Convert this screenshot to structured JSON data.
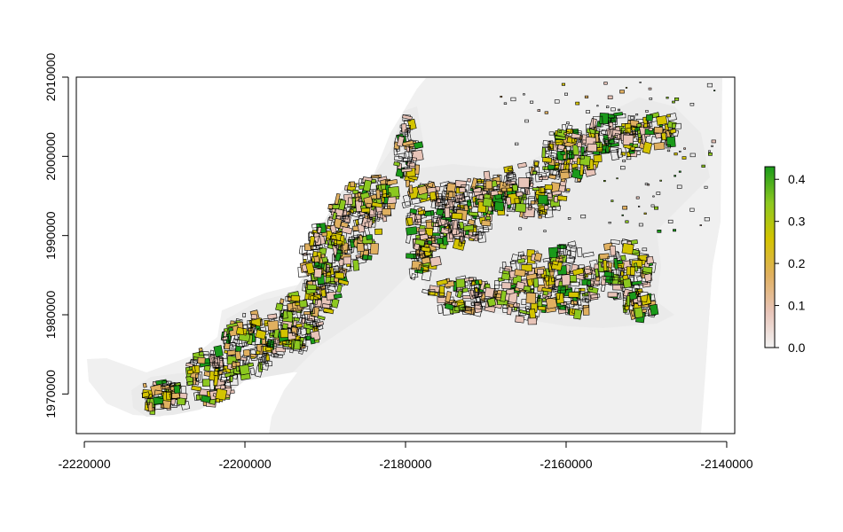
{
  "chart_data": {
    "type": "heatmap",
    "title": "",
    "xlabel": "",
    "ylabel": "",
    "xlim": [
      -2221000,
      -2139000
    ],
    "ylim": [
      1965000,
      2010000
    ],
    "x_ticks": [
      -2220000,
      -2200000,
      -2180000,
      -2160000,
      -2140000
    ],
    "y_ticks": [
      1970000,
      1980000,
      1990000,
      2000000,
      2010000
    ],
    "x_tick_labels": [
      "-2220000",
      "-2200000",
      "-2180000",
      "-2160000",
      "-2140000"
    ],
    "y_tick_labels": [
      "1970000",
      "1980000",
      "1990000",
      "2000000",
      "2010000"
    ],
    "legend": {
      "placement": "right",
      "min": 0.0,
      "max": 0.43,
      "ticks": [
        0.0,
        0.1,
        0.2,
        0.3,
        0.4
      ],
      "tick_labels": [
        "0.0",
        "0.1",
        "0.2",
        "0.3",
        "0.4"
      ],
      "colors": [
        "#f2f2f2",
        "#e8c4b8",
        "#e0b060",
        "#d4c400",
        "#8cc820",
        "#1a9a1a"
      ]
    },
    "background_color": "#f0f0f0",
    "outline_color": "#000000"
  }
}
